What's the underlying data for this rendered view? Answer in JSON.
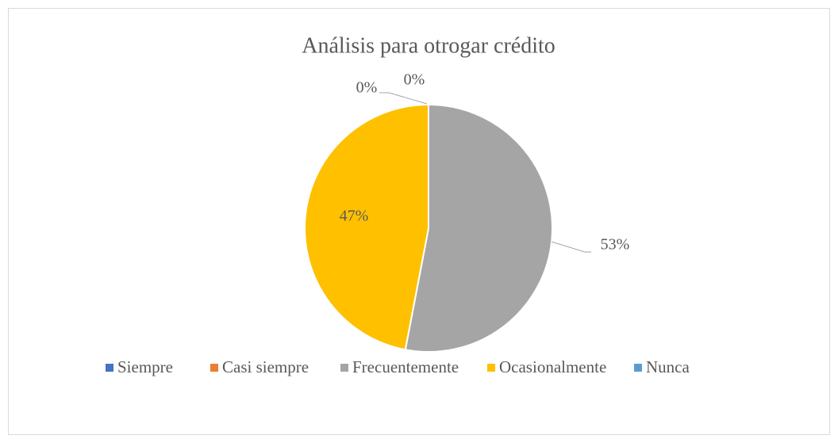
{
  "chart_data": {
    "type": "pie",
    "title": "Análisis para otrogar crédito",
    "categories": [
      "Siempre",
      "Casi siempre",
      "Frecuentemente",
      "Ocasionalmente",
      "Nunca"
    ],
    "values": [
      0,
      0,
      53,
      47,
      0
    ],
    "value_labels": [
      "0%",
      "0%",
      "53%",
      "47%",
      "0%"
    ],
    "colors": [
      "#4472c4",
      "#ed7d31",
      "#a5a5a5",
      "#ffc000",
      "#5b9bd5"
    ],
    "legend": "bottom"
  }
}
